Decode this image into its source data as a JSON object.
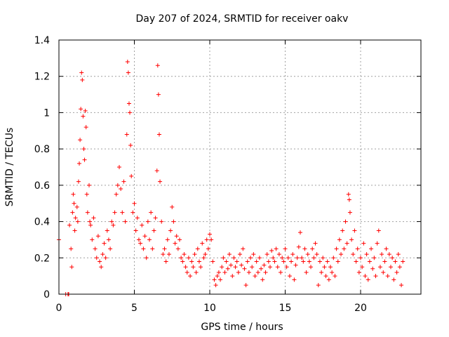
{
  "chart_data": {
    "type": "scatter",
    "title": "Day 207 of 2024, SRMTID for receiver oakv",
    "xlabel": "GPS time / hours",
    "ylabel": "SRMTID / TECUs",
    "xlim": [
      0,
      24
    ],
    "ylim": [
      0,
      1.4
    ],
    "xticks": [
      0,
      5,
      10,
      15,
      20
    ],
    "xtick_labels": [
      "0",
      "5",
      "10",
      "15",
      "20"
    ],
    "yticks": [
      0,
      0.2,
      0.4,
      0.6,
      0.8,
      1.0,
      1.2,
      1.4
    ],
    "ytick_labels": [
      "0",
      "0.2",
      "0.4",
      "0.6",
      "0.8",
      "1",
      "1.2",
      "1.4"
    ],
    "grid": true,
    "marker": "plus",
    "color": "#ff0000",
    "series": [
      {
        "name": "SRMTID",
        "points": [
          [
            0.0,
            0.3
          ],
          [
            0.45,
            0.0
          ],
          [
            0.6,
            0.0
          ],
          [
            0.65,
            0.0
          ],
          [
            0.7,
            0.38
          ],
          [
            0.8,
            0.25
          ],
          [
            0.85,
            0.15
          ],
          [
            0.9,
            0.45
          ],
          [
            0.95,
            0.55
          ],
          [
            1.0,
            0.5
          ],
          [
            1.05,
            0.35
          ],
          [
            1.1,
            0.42
          ],
          [
            1.2,
            0.48
          ],
          [
            1.25,
            0.4
          ],
          [
            1.3,
            0.62
          ],
          [
            1.35,
            0.72
          ],
          [
            1.4,
            0.85
          ],
          [
            1.45,
            1.02
          ],
          [
            1.5,
            1.22
          ],
          [
            1.55,
            1.18
          ],
          [
            1.6,
            0.98
          ],
          [
            1.65,
            0.8
          ],
          [
            1.7,
            0.74
          ],
          [
            1.75,
            1.01
          ],
          [
            1.8,
            0.92
          ],
          [
            1.85,
            0.55
          ],
          [
            1.9,
            0.45
          ],
          [
            2.0,
            0.6
          ],
          [
            2.05,
            0.4
          ],
          [
            2.1,
            0.38
          ],
          [
            2.2,
            0.3
          ],
          [
            2.3,
            0.42
          ],
          [
            2.4,
            0.25
          ],
          [
            2.5,
            0.2
          ],
          [
            2.6,
            0.32
          ],
          [
            2.7,
            0.18
          ],
          [
            2.8,
            0.15
          ],
          [
            2.9,
            0.22
          ],
          [
            3.0,
            0.28
          ],
          [
            3.1,
            0.2
          ],
          [
            3.2,
            0.35
          ],
          [
            3.3,
            0.3
          ],
          [
            3.4,
            0.25
          ],
          [
            3.5,
            0.4
          ],
          [
            3.6,
            0.38
          ],
          [
            3.7,
            0.45
          ],
          [
            3.8,
            0.55
          ],
          [
            3.9,
            0.6
          ],
          [
            4.0,
            0.7
          ],
          [
            4.1,
            0.58
          ],
          [
            4.2,
            0.45
          ],
          [
            4.3,
            0.62
          ],
          [
            4.4,
            0.4
          ],
          [
            4.5,
            0.88
          ],
          [
            4.55,
            1.28
          ],
          [
            4.6,
            1.22
          ],
          [
            4.65,
            1.05
          ],
          [
            4.7,
            1.0
          ],
          [
            4.75,
            0.82
          ],
          [
            4.8,
            0.65
          ],
          [
            4.9,
            0.45
          ],
          [
            5.0,
            0.5
          ],
          [
            5.1,
            0.35
          ],
          [
            5.2,
            0.42
          ],
          [
            5.3,
            0.3
          ],
          [
            5.4,
            0.28
          ],
          [
            5.5,
            0.38
          ],
          [
            5.6,
            0.25
          ],
          [
            5.7,
            0.32
          ],
          [
            5.8,
            0.2
          ],
          [
            5.9,
            0.4
          ],
          [
            6.0,
            0.3
          ],
          [
            6.1,
            0.45
          ],
          [
            6.2,
            0.25
          ],
          [
            6.3,
            0.35
          ],
          [
            6.4,
            0.42
          ],
          [
            6.5,
            0.68
          ],
          [
            6.55,
            1.26
          ],
          [
            6.6,
            1.1
          ],
          [
            6.65,
            0.88
          ],
          [
            6.7,
            0.62
          ],
          [
            6.8,
            0.4
          ],
          [
            6.9,
            0.22
          ],
          [
            7.0,
            0.25
          ],
          [
            7.1,
            0.18
          ],
          [
            7.2,
            0.3
          ],
          [
            7.3,
            0.22
          ],
          [
            7.4,
            0.35
          ],
          [
            7.5,
            0.48
          ],
          [
            7.6,
            0.4
          ],
          [
            7.7,
            0.28
          ],
          [
            7.8,
            0.32
          ],
          [
            7.9,
            0.25
          ],
          [
            8.0,
            0.3
          ],
          [
            8.1,
            0.2
          ],
          [
            8.2,
            0.18
          ],
          [
            8.3,
            0.22
          ],
          [
            8.4,
            0.15
          ],
          [
            8.5,
            0.12
          ],
          [
            8.6,
            0.2
          ],
          [
            8.7,
            0.1
          ],
          [
            8.8,
            0.18
          ],
          [
            8.9,
            0.15
          ],
          [
            9.0,
            0.22
          ],
          [
            9.1,
            0.12
          ],
          [
            9.2,
            0.25
          ],
          [
            9.3,
            0.18
          ],
          [
            9.4,
            0.15
          ],
          [
            9.5,
            0.28
          ],
          [
            9.6,
            0.2
          ],
          [
            9.7,
            0.22
          ],
          [
            9.8,
            0.3
          ],
          [
            9.9,
            0.25
          ],
          [
            10.0,
            0.33
          ],
          [
            10.1,
            0.3
          ],
          [
            10.2,
            0.18
          ],
          [
            10.3,
            0.08
          ],
          [
            10.4,
            0.05
          ],
          [
            10.5,
            0.1
          ],
          [
            10.6,
            0.12
          ],
          [
            10.7,
            0.08
          ],
          [
            10.8,
            0.15
          ],
          [
            10.9,
            0.2
          ],
          [
            11.0,
            0.12
          ],
          [
            11.1,
            0.18
          ],
          [
            11.2,
            0.14
          ],
          [
            11.3,
            0.22
          ],
          [
            11.4,
            0.16
          ],
          [
            11.5,
            0.1
          ],
          [
            11.6,
            0.2
          ],
          [
            11.7,
            0.15
          ],
          [
            11.8,
            0.18
          ],
          [
            11.9,
            0.12
          ],
          [
            12.0,
            0.22
          ],
          [
            12.1,
            0.16
          ],
          [
            12.2,
            0.25
          ],
          [
            12.3,
            0.14
          ],
          [
            12.4,
            0.05
          ],
          [
            12.5,
            0.18
          ],
          [
            12.6,
            0.12
          ],
          [
            12.7,
            0.2
          ],
          [
            12.8,
            0.15
          ],
          [
            12.9,
            0.22
          ],
          [
            13.0,
            0.1
          ],
          [
            13.1,
            0.18
          ],
          [
            13.2,
            0.12
          ],
          [
            13.3,
            0.2
          ],
          [
            13.4,
            0.14
          ],
          [
            13.5,
            0.08
          ],
          [
            13.6,
            0.16
          ],
          [
            13.7,
            0.12
          ],
          [
            13.8,
            0.22
          ],
          [
            13.9,
            0.18
          ],
          [
            14.0,
            0.15
          ],
          [
            14.1,
            0.24
          ],
          [
            14.2,
            0.2
          ],
          [
            14.3,
            0.18
          ],
          [
            14.4,
            0.25
          ],
          [
            14.5,
            0.15
          ],
          [
            14.6,
            0.22
          ],
          [
            14.7,
            0.12
          ],
          [
            14.8,
            0.2
          ],
          [
            14.9,
            0.18
          ],
          [
            15.0,
            0.25
          ],
          [
            15.1,
            0.15
          ],
          [
            15.2,
            0.2
          ],
          [
            15.3,
            0.1
          ],
          [
            15.4,
            0.18
          ],
          [
            15.5,
            0.22
          ],
          [
            15.6,
            0.08
          ],
          [
            15.7,
            0.16
          ],
          [
            15.8,
            0.2
          ],
          [
            15.9,
            0.26
          ],
          [
            16.0,
            0.34
          ],
          [
            16.1,
            0.2
          ],
          [
            16.2,
            0.18
          ],
          [
            16.3,
            0.25
          ],
          [
            16.4,
            0.12
          ],
          [
            16.5,
            0.22
          ],
          [
            16.6,
            0.18
          ],
          [
            16.7,
            0.15
          ],
          [
            16.8,
            0.25
          ],
          [
            16.9,
            0.2
          ],
          [
            17.0,
            0.28
          ],
          [
            17.1,
            0.22
          ],
          [
            17.2,
            0.05
          ],
          [
            17.3,
            0.18
          ],
          [
            17.4,
            0.12
          ],
          [
            17.5,
            0.2
          ],
          [
            17.6,
            0.15
          ],
          [
            17.7,
            0.1
          ],
          [
            17.8,
            0.18
          ],
          [
            17.9,
            0.08
          ],
          [
            18.0,
            0.15
          ],
          [
            18.1,
            0.12
          ],
          [
            18.2,
            0.2
          ],
          [
            18.3,
            0.1
          ],
          [
            18.4,
            0.25
          ],
          [
            18.5,
            0.18
          ],
          [
            18.6,
            0.3
          ],
          [
            18.7,
            0.22
          ],
          [
            18.8,
            0.35
          ],
          [
            18.9,
            0.25
          ],
          [
            19.0,
            0.4
          ],
          [
            19.1,
            0.28
          ],
          [
            19.2,
            0.55
          ],
          [
            19.25,
            0.52
          ],
          [
            19.3,
            0.45
          ],
          [
            19.4,
            0.3
          ],
          [
            19.5,
            0.22
          ],
          [
            19.6,
            0.35
          ],
          [
            19.7,
            0.18
          ],
          [
            19.8,
            0.25
          ],
          [
            19.9,
            0.12
          ],
          [
            20.0,
            0.2
          ],
          [
            20.1,
            0.15
          ],
          [
            20.2,
            0.28
          ],
          [
            20.3,
            0.1
          ],
          [
            20.4,
            0.22
          ],
          [
            20.5,
            0.08
          ],
          [
            20.6,
            0.18
          ],
          [
            20.7,
            0.25
          ],
          [
            20.8,
            0.14
          ],
          [
            20.9,
            0.2
          ],
          [
            21.0,
            0.1
          ],
          [
            21.1,
            0.28
          ],
          [
            21.2,
            0.35
          ],
          [
            21.3,
            0.15
          ],
          [
            21.4,
            0.22
          ],
          [
            21.5,
            0.12
          ],
          [
            21.6,
            0.18
          ],
          [
            21.7,
            0.25
          ],
          [
            21.8,
            0.1
          ],
          [
            21.9,
            0.22
          ],
          [
            22.0,
            0.15
          ],
          [
            22.1,
            0.2
          ],
          [
            22.2,
            0.08
          ],
          [
            22.3,
            0.18
          ],
          [
            22.4,
            0.12
          ],
          [
            22.5,
            0.22
          ],
          [
            22.6,
            0.15
          ],
          [
            22.7,
            0.05
          ],
          [
            22.8,
            0.18
          ]
        ]
      }
    ]
  }
}
